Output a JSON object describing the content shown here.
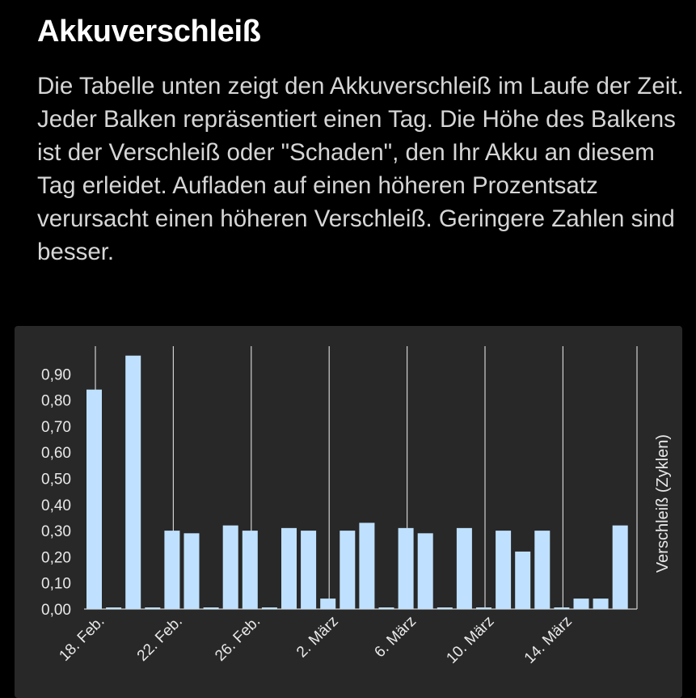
{
  "header": {
    "title": "Akkuverschleiß",
    "description": "Die Tabelle unten zeigt den Akkuverschleiß im Laufe der Zeit. Jeder Balken repräsentiert einen Tag. Die Höhe des Balkens ist der Verschleiß oder \"Schaden\", den Ihr Akku an diesem Tag erleidet. Aufladen auf einen höheren Prozentsatz verursacht einen höheren Verschleiß. Geringere Zahlen sind besser."
  },
  "colors": {
    "background": "#000000",
    "card": "#282828",
    "bar": "#bfe1ff",
    "grid": "#d0d0d0",
    "text": "#e8e8e8"
  },
  "chart_data": {
    "type": "bar",
    "title": "",
    "xlabel": "",
    "ylabel": "Verschleiß (Zyklen)",
    "ylim": [
      0,
      0.98
    ],
    "y_ticks": [
      "0,00",
      "0,10",
      "0,20",
      "0,30",
      "0,40",
      "0,50",
      "0,60",
      "0,70",
      "0,80",
      "0,90"
    ],
    "x_tick_labels": [
      "18. Feb.",
      "22. Feb.",
      "26. Feb.",
      "2. März",
      "6. März",
      "10. März",
      "14. März"
    ],
    "grid": true,
    "legend": "none",
    "values": [
      0.84,
      0.0,
      0.97,
      0.0,
      0.3,
      0.29,
      0.0,
      0.32,
      0.3,
      0.0,
      0.31,
      0.3,
      0.04,
      0.3,
      0.33,
      0.0,
      0.31,
      0.29,
      0.0,
      0.31,
      0.0,
      0.3,
      0.22,
      0.3,
      0.0,
      0.04,
      0.04,
      0.32
    ]
  }
}
